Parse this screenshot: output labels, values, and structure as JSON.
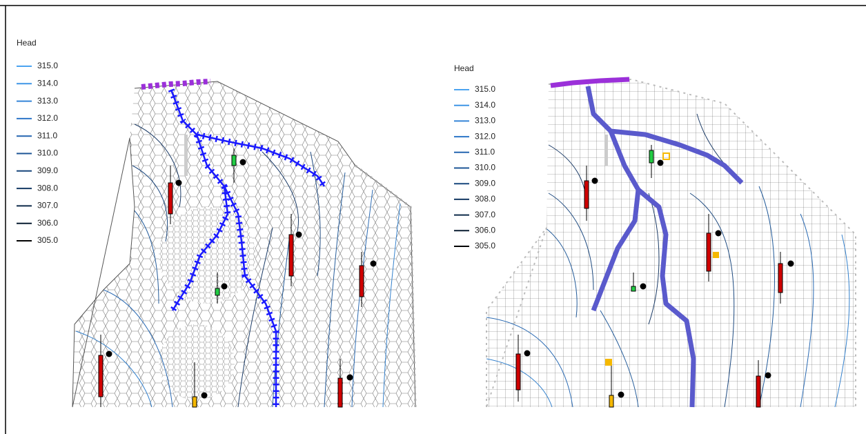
{
  "legends": [
    {
      "title": "Head",
      "items": [
        "315.0",
        "314.0",
        "313.0",
        "312.0",
        "311.0",
        "310.0",
        "309.0",
        "308.0",
        "307.0",
        "306.0",
        "305.0"
      ]
    },
    {
      "title": "Head",
      "items": [
        "315.0",
        "314.0",
        "313.0",
        "312.0",
        "311.0",
        "310.0",
        "309.0",
        "308.0",
        "307.0",
        "306.0",
        "305.0"
      ]
    }
  ]
}
